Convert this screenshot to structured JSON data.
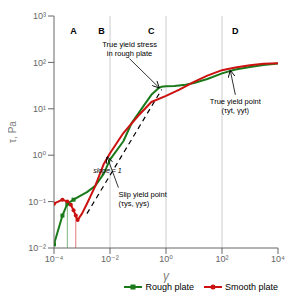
{
  "chart_data": {
    "type": "line",
    "log": true,
    "grid": false,
    "legend": "lower right",
    "xlabel": "γ",
    "ylabel": "τ, Pa",
    "xlim": [
      0.0001,
      10000
    ],
    "ylim": [
      0.01,
      1000
    ],
    "xticks": [
      {
        "value": 0.0001,
        "label": "10⁻⁴"
      },
      {
        "value": 0.01,
        "label": "10⁻²"
      },
      {
        "value": 1,
        "label": "10⁰"
      },
      {
        "value": 100,
        "label": "10²"
      },
      {
        "value": 10000,
        "label": "10⁴"
      }
    ],
    "yticks": [
      {
        "value": 0.01,
        "label": "10⁻²"
      },
      {
        "value": 0.1,
        "label": "10⁻¹"
      },
      {
        "value": 1,
        "label": "10⁰"
      },
      {
        "value": 10,
        "label": "10¹"
      },
      {
        "value": 100,
        "label": "10²"
      },
      {
        "value": 1000,
        "label": "10³"
      }
    ],
    "series": [
      {
        "name": "Rough plate",
        "color": "#1a7a1a",
        "marker": "square",
        "x": [
          0.0001,
          0.0002,
          0.0003,
          0.0005,
          0.0008,
          0.0015,
          0.003,
          0.006,
          0.01,
          0.03,
          0.06,
          0.15,
          0.3,
          0.55,
          0.7,
          1,
          2,
          5,
          10,
          30,
          100,
          300,
          1000,
          3000,
          10000
        ],
        "values": [
          0.012,
          0.05,
          0.09,
          0.11,
          0.13,
          0.16,
          0.22,
          0.4,
          0.8,
          2,
          5,
          11,
          20,
          28,
          30,
          30.5,
          31,
          33,
          36,
          44,
          58,
          70,
          80,
          88,
          95
        ],
        "points": {
          "x": [
            0.0001,
            0.0002,
            0.0003,
            0.0005
          ],
          "values": [
            0.012,
            0.05,
            0.09,
            0.11
          ]
        },
        "drop_line": {
          "x": [
            0.0003,
            0.0003
          ],
          "values": [
            0.01,
            0.1
          ]
        }
      },
      {
        "name": "Smooth plate",
        "color": "#cc1111",
        "marker": "circle",
        "x": [
          0.0001,
          0.0002,
          0.0003,
          0.0004,
          0.0005,
          0.0006,
          0.0007,
          0.001,
          0.0015,
          0.002,
          0.003,
          0.006,
          0.01,
          0.03,
          0.1,
          0.3,
          1,
          3,
          10,
          30,
          100,
          300,
          1000,
          3000,
          10000
        ],
        "values": [
          0.09,
          0.11,
          0.1,
          0.085,
          0.065,
          0.05,
          0.04,
          0.055,
          0.09,
          0.13,
          0.22,
          0.65,
          1.1,
          3,
          7,
          14,
          19,
          26,
          38,
          52,
          68,
          78,
          87,
          93,
          96
        ],
        "points": {
          "x": [
            0.0001,
            0.0002,
            0.0003,
            0.0004,
            0.0005,
            0.0006,
            0.0007
          ],
          "values": [
            0.09,
            0.11,
            0.1,
            0.085,
            0.065,
            0.05,
            0.04
          ]
        },
        "drop_line": {
          "x": [
            0.0006,
            0.0006
          ],
          "values": [
            0.01,
            0.05
          ]
        }
      }
    ],
    "slope_line": {
      "x": [
        0.0015,
        0.7
      ],
      "values": [
        0.055,
        26
      ],
      "line_style": "dashed",
      "color": "#000000"
    },
    "vlines": [
      0.01,
      1,
      100
    ],
    "region_labels": [
      {
        "text": "A",
        "x": 0.0005,
        "y": 650
      },
      {
        "text": "B",
        "x": 0.005,
        "y": 650
      },
      {
        "text": "C",
        "x": 0.3,
        "y": 650
      },
      {
        "text": "D",
        "x": 300,
        "y": 650
      }
    ],
    "annotations": [
      {
        "text": "slope = 1",
        "x": 0.0025,
        "y": 0.35
      },
      {
        "text": "True yield stress\nin rough plate",
        "x": 0.05,
        "y": 120,
        "arrow_to": [
          0.55,
          29
        ]
      },
      {
        "text": "Slip yield point\n(τys, γys)",
        "x": 0.02,
        "y": 0.2,
        "arrow_to": [
          0.008,
          0.9
        ]
      },
      {
        "text": "True yield point\n(τyt, γyt)",
        "x": 300,
        "y": 20,
        "arrow_to": [
          200,
          65
        ]
      }
    ]
  }
}
